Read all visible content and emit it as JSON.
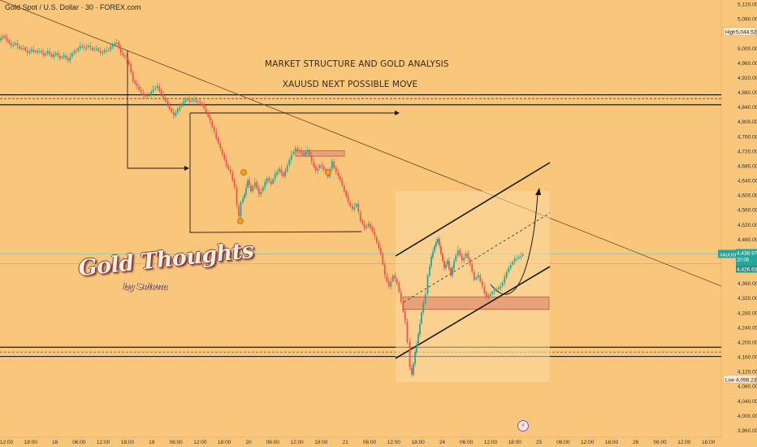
{
  "header": {
    "symbol_title": "Gold Spot / U.S. Dollar · 30 · FOREX.com"
  },
  "annotations": {
    "headline_1": "MARKET STRUCTURE AND GOLD ANALYSIS",
    "headline_2": "XAUUSD NEXT POSSIBLE MOVE"
  },
  "logo": {
    "main": "Gold Thoughts",
    "sub": "by Selena"
  },
  "price_labels": {
    "high_tag": "High",
    "high_value": "5,044.52",
    "low_tag": "Low",
    "low_value": "4,098.23",
    "symbol_tag": "XAUUSD",
    "current_value": "4,438.97",
    "countdown": "20:08",
    "second_value": "4,426.63"
  },
  "colors": {
    "background": "#f8c77b",
    "up_candle": "#26a69a",
    "down_candle": "#ef5350",
    "zone_fill": "#e8a27a",
    "zone_border": "#b85c3a",
    "line_dark": "#1a1a1a",
    "trendline": "#8b4a2b"
  },
  "chart_data": {
    "type": "candlestick",
    "title": "Gold Spot / U.S. Dollar · 30 · FOREX.com",
    "y_axis_ticks": [
      "5,120.00",
      "5,080.00",
      "5,040.00",
      "5,000.00",
      "4,960.00",
      "4,920.00",
      "4,880.00",
      "4,840.00",
      "4,800.00",
      "4,760.00",
      "4,720.00",
      "4,680.00",
      "4,640.00",
      "4,600.00",
      "4,560.00",
      "4,520.00",
      "4,480.00",
      "4,440.00",
      "4,400.00",
      "4,360.00",
      "4,320.00",
      "4,280.00",
      "4,240.00",
      "4,200.00",
      "4,160.00",
      "4,120.00",
      "4,080.00",
      "4,040.00",
      "4,000.00",
      "3,960.00"
    ],
    "ylim": [
      3940,
      5130
    ],
    "x_axis_ticks": [
      "12:00",
      "18:00",
      "18",
      "06:00",
      "12:00",
      "18:00",
      "19",
      "06:00",
      "12:00",
      "18:00",
      "20",
      "06:00",
      "12:00",
      "18:00",
      "21",
      "06:00",
      "12:00",
      "18:00",
      "24",
      "06:00",
      "12:00",
      "18:00",
      "25",
      "06:00",
      "12:00",
      "18:00",
      "26",
      "06:00",
      "12:00",
      "18:00"
    ],
    "high": 5044.52,
    "low": 4098.23,
    "last": 4438.97,
    "price_path": [
      [
        0,
        5020
      ],
      [
        5,
        5032
      ],
      [
        10,
        5020
      ],
      [
        15,
        5005
      ],
      [
        20,
        5012
      ],
      [
        25,
        4998
      ],
      [
        30,
        5000
      ],
      [
        35,
        4985
      ],
      [
        40,
        4995
      ],
      [
        45,
        4988
      ],
      [
        50,
        4992
      ],
      [
        55,
        4980
      ],
      [
        60,
        4990
      ],
      [
        65,
        4975
      ],
      [
        70,
        4985
      ],
      [
        75,
        4972
      ],
      [
        80,
        4978
      ],
      [
        85,
        4965
      ],
      [
        90,
        4985
      ],
      [
        95,
        4992
      ],
      [
        100,
        5005
      ],
      [
        105,
        4998
      ],
      [
        110,
        5005
      ],
      [
        115,
        4995
      ],
      [
        120,
        4998
      ],
      [
        125,
        4985
      ],
      [
        130,
        4992
      ],
      [
        135,
        4995
      ],
      [
        140,
        5008
      ],
      [
        145,
        5015
      ],
      [
        150,
        4985
      ],
      [
        155,
        4975
      ],
      [
        160,
        4955
      ],
      [
        165,
        4910
      ],
      [
        170,
        4895
      ],
      [
        175,
        4878
      ],
      [
        180,
        4868
      ],
      [
        185,
        4872
      ],
      [
        190,
        4888
      ],
      [
        195,
        4895
      ],
      [
        200,
        4872
      ],
      [
        205,
        4855
      ],
      [
        210,
        4835
      ],
      [
        215,
        4815
      ],
      [
        220,
        4832
      ],
      [
        225,
        4848
      ],
      [
        230,
        4860
      ],
      [
        235,
        4855
      ],
      [
        240,
        4858
      ],
      [
        245,
        4852
      ],
      [
        250,
        4845
      ],
      [
        255,
        4825
      ],
      [
        260,
        4800
      ],
      [
        265,
        4770
      ],
      [
        270,
        4740
      ],
      [
        275,
        4710
      ],
      [
        280,
        4680
      ],
      [
        285,
        4660
      ],
      [
        290,
        4620
      ],
      [
        293,
        4570
      ],
      [
        295,
        4540
      ],
      [
        298,
        4580
      ],
      [
        302,
        4600
      ],
      [
        306,
        4640
      ],
      [
        310,
        4610
      ],
      [
        315,
        4635
      ],
      [
        320,
        4600
      ],
      [
        325,
        4620
      ],
      [
        330,
        4645
      ],
      [
        335,
        4630
      ],
      [
        340,
        4655
      ],
      [
        345,
        4670
      ],
      [
        350,
        4650
      ],
      [
        355,
        4680
      ],
      [
        360,
        4710
      ],
      [
        365,
        4725
      ],
      [
        370,
        4718
      ],
      [
        375,
        4708
      ],
      [
        380,
        4722
      ],
      [
        385,
        4690
      ],
      [
        390,
        4665
      ],
      [
        395,
        4680
      ],
      [
        400,
        4670
      ],
      [
        405,
        4650
      ],
      [
        410,
        4690
      ],
      [
        415,
        4660
      ],
      [
        420,
        4640
      ],
      [
        425,
        4610
      ],
      [
        430,
        4580
      ],
      [
        435,
        4560
      ],
      [
        440,
        4575
      ],
      [
        445,
        4530
      ],
      [
        450,
        4510
      ],
      [
        455,
        4520
      ],
      [
        460,
        4500
      ],
      [
        465,
        4470
      ],
      [
        470,
        4440
      ],
      [
        475,
        4380
      ],
      [
        480,
        4350
      ],
      [
        485,
        4380
      ],
      [
        490,
        4360
      ],
      [
        495,
        4310
      ],
      [
        500,
        4255
      ],
      [
        503,
        4200
      ],
      [
        506,
        4130
      ],
      [
        508,
        4110
      ],
      [
        512,
        4170
      ],
      [
        516,
        4220
      ],
      [
        520,
        4280
      ],
      [
        525,
        4330
      ],
      [
        528,
        4380
      ],
      [
        532,
        4430
      ],
      [
        536,
        4460
      ],
      [
        540,
        4480
      ],
      [
        544,
        4440
      ],
      [
        548,
        4400
      ],
      [
        552,
        4420
      ],
      [
        556,
        4380
      ],
      [
        560,
        4420
      ],
      [
        565,
        4450
      ],
      [
        570,
        4420
      ],
      [
        575,
        4440
      ],
      [
        580,
        4410
      ],
      [
        585,
        4370
      ],
      [
        590,
        4380
      ],
      [
        595,
        4350
      ],
      [
        600,
        4320
      ],
      [
        605,
        4330
      ],
      [
        610,
        4340
      ],
      [
        615,
        4345
      ],
      [
        620,
        4360
      ],
      [
        625,
        4390
      ],
      [
        630,
        4410
      ],
      [
        635,
        4425
      ],
      [
        640,
        4430
      ],
      [
        645,
        4438
      ]
    ]
  }
}
